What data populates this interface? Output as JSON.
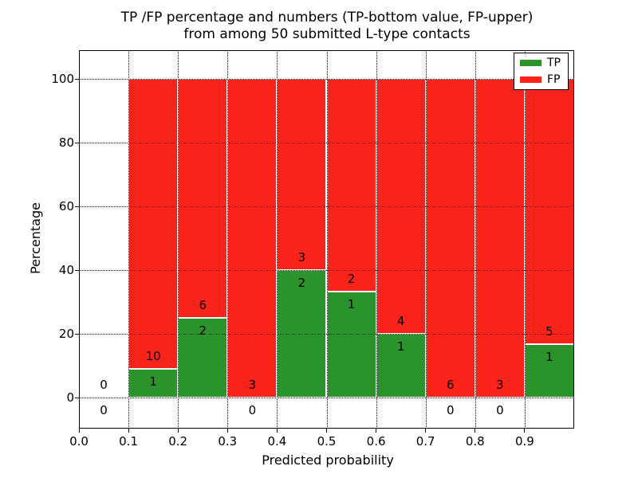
{
  "title": {
    "line1": "TP /FP percentage and numbers (TP-bottom value, FP-upper)",
    "line2": "from among 50 submitted L-type contacts"
  },
  "axes": {
    "xlabel": "Predicted probability",
    "ylabel": "Percentage"
  },
  "legend": {
    "items": [
      {
        "label": "TP",
        "color": "#2a942a"
      },
      {
        "label": "FP",
        "color": "#fb241a"
      }
    ]
  },
  "colors": {
    "tp_green": "#2a942a",
    "fp_red": "#fb241a",
    "bar_edge": "#ffffff",
    "grid": "#000000",
    "background": "#ffffff"
  },
  "chart_data": {
    "type": "bar",
    "stacked": true,
    "title": "TP /FP percentage and numbers (TP-bottom value, FP-upper) from among 50 submitted L-type contacts",
    "xlabel": "Predicted probability",
    "ylabel": "Percentage",
    "xlim": [
      0.0,
      1.0
    ],
    "ylim": [
      -10,
      110
    ],
    "xticks": [
      0.0,
      0.1,
      0.2,
      0.3,
      0.4,
      0.5,
      0.6,
      0.7,
      0.8,
      0.9
    ],
    "yticks": [
      0,
      20,
      40,
      60,
      80,
      100
    ],
    "grid": "dotted-black-both-axes",
    "legend_position": "upper right",
    "series": [
      {
        "name": "TP",
        "counts": [
          0,
          1,
          2,
          0,
          2,
          1,
          1,
          0,
          0,
          1
        ],
        "pct": [
          0,
          9.09,
          25.0,
          0,
          40.0,
          33.33,
          20.0,
          0,
          0,
          16.67
        ]
      },
      {
        "name": "FP",
        "counts": [
          0,
          10,
          6,
          3,
          3,
          2,
          4,
          6,
          3,
          5
        ],
        "pct": [
          0,
          90.91,
          75.0,
          100.0,
          60.0,
          66.67,
          80.0,
          100.0,
          100.0,
          83.33
        ]
      }
    ],
    "bins": [
      {
        "x0": 0.0,
        "x1": 0.1,
        "tp_count": 0,
        "fp_count": 0,
        "tp_pct": 0,
        "fp_pct": 0
      },
      {
        "x0": 0.1,
        "x1": 0.2,
        "tp_count": 1,
        "fp_count": 10,
        "tp_pct": 9.09,
        "fp_pct": 90.91
      },
      {
        "x0": 0.2,
        "x1": 0.3,
        "tp_count": 2,
        "fp_count": 6,
        "tp_pct": 25.0,
        "fp_pct": 75.0
      },
      {
        "x0": 0.3,
        "x1": 0.4,
        "tp_count": 0,
        "fp_count": 3,
        "tp_pct": 0,
        "fp_pct": 100.0
      },
      {
        "x0": 0.4,
        "x1": 0.5,
        "tp_count": 2,
        "fp_count": 3,
        "tp_pct": 40.0,
        "fp_pct": 60.0
      },
      {
        "x0": 0.5,
        "x1": 0.6,
        "tp_count": 1,
        "fp_count": 2,
        "tp_pct": 33.33,
        "fp_pct": 66.67
      },
      {
        "x0": 0.6,
        "x1": 0.7,
        "tp_count": 1,
        "fp_count": 4,
        "tp_pct": 20.0,
        "fp_pct": 80.0
      },
      {
        "x0": 0.7,
        "x1": 0.8,
        "tp_count": 0,
        "fp_count": 6,
        "tp_pct": 0,
        "fp_pct": 100.0
      },
      {
        "x0": 0.8,
        "x1": 0.9,
        "tp_count": 0,
        "fp_count": 3,
        "tp_pct": 0,
        "fp_pct": 100.0
      },
      {
        "x0": 0.9,
        "x1": 1.0,
        "tp_count": 1,
        "fp_count": 5,
        "tp_pct": 16.67,
        "fp_pct": 83.33
      }
    ]
  }
}
